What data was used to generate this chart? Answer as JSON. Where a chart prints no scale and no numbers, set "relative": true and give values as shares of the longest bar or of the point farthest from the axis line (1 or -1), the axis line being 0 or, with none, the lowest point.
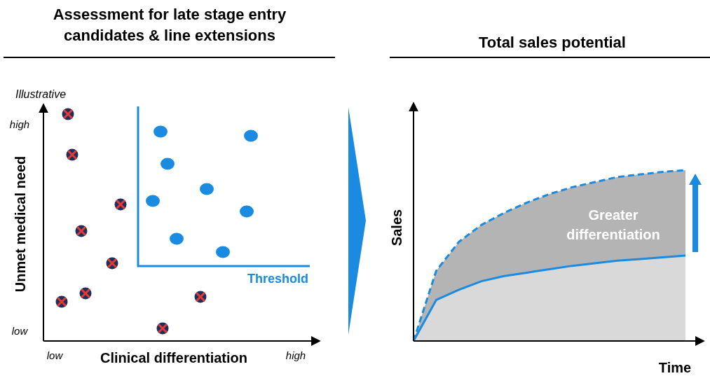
{
  "chart_data": [
    {
      "type": "other",
      "title": "Assessment for late stage entry candidates & line extensions",
      "xlabel": "Clinical differentiation",
      "ylabel": "Unmet medical need",
      "annotations": [
        "Illustrative",
        "high",
        "low",
        "low",
        "high",
        "Threshold"
      ]
    },
    {
      "type": "area",
      "title": "Total sales potential",
      "xlabel": "Time",
      "ylabel": "Sales",
      "annotations": [
        "Greater differentiation"
      ],
      "relative": true,
      "categories": [
        null,
        null,
        null,
        null,
        null,
        null,
        null,
        null,
        null,
        null,
        null,
        null,
        null
      ],
      "series": [
        {
          "color": "#1a8be0",
          "line_style": "dashed",
          "values": [
            0,
            0.41,
            0.58,
            0.68,
            0.75,
            0.81,
            0.86,
            0.9,
            0.93,
            0.96,
            0.975,
            0.99,
            1
          ]
        },
        {
          "color": "#1a8be0",
          "line_style": "solid",
          "values": [
            0,
            0.24,
            0.3,
            0.35,
            0.38,
            0.4,
            0.42,
            0.44,
            0.455,
            0.47,
            0.48,
            0.49,
            0.5
          ]
        }
      ]
    }
  ]
}
